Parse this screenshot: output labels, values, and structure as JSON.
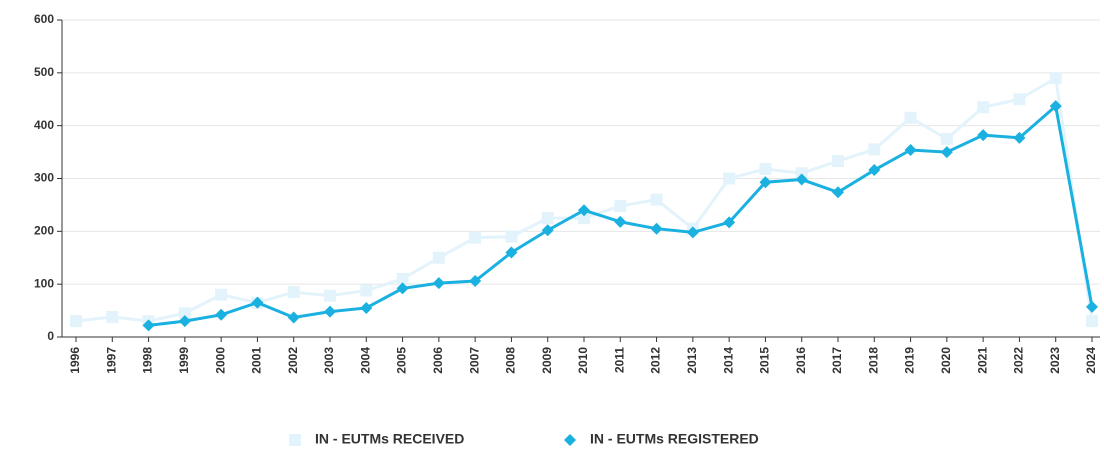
{
  "chart_data": {
    "type": "line",
    "categories": [
      "1996",
      "1997",
      "1998",
      "1999",
      "2000",
      "2001",
      "2002",
      "2003",
      "2004",
      "2005",
      "2006",
      "2007",
      "2008",
      "2009",
      "2010",
      "2011",
      "2012",
      "2013",
      "2014",
      "2015",
      "2016",
      "2017",
      "2018",
      "2019",
      "2020",
      "2021",
      "2022",
      "2023",
      "2024"
    ],
    "series": [
      {
        "name": "IN - EUTMs RECEIVED",
        "color": "#e3f3fc",
        "marker": "square",
        "values": [
          30,
          38,
          30,
          45,
          80,
          65,
          85,
          78,
          88,
          110,
          150,
          188,
          190,
          225,
          225,
          248,
          260,
          205,
          300,
          318,
          310,
          333,
          355,
          415,
          375,
          435,
          450,
          490,
          30
        ]
      },
      {
        "name": "IN - EUTMs REGISTERED",
        "color": "#1ab0e0",
        "marker": "diamond",
        "values": [
          null,
          null,
          22,
          30,
          42,
          65,
          37,
          48,
          55,
          92,
          102,
          106,
          160,
          202,
          240,
          218,
          205,
          198,
          217,
          293,
          298,
          274,
          316,
          354,
          350,
          382,
          377,
          437,
          57
        ]
      }
    ],
    "ylim": [
      0,
      600
    ],
    "yticks": [
      0,
      100,
      200,
      300,
      400,
      500,
      600
    ],
    "grid": true
  }
}
